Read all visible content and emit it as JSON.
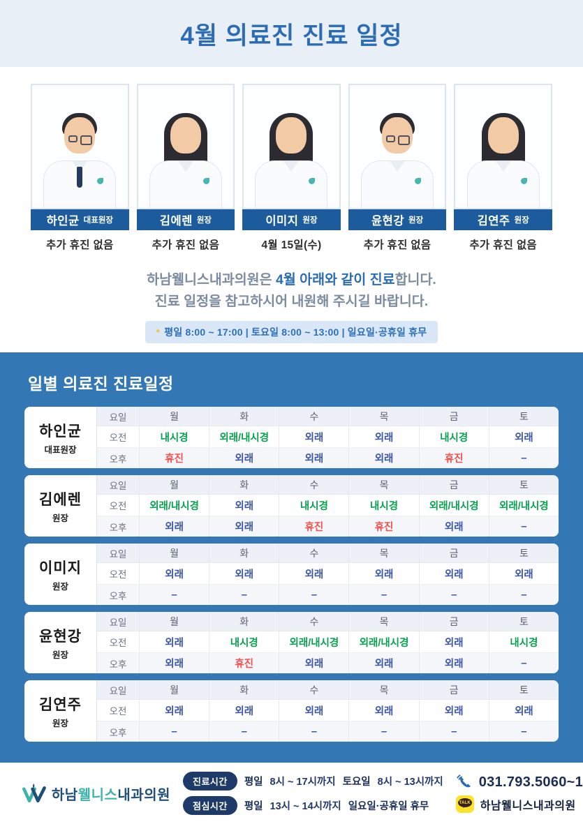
{
  "poster": {
    "title": "4월 의료진 진료 일정"
  },
  "doctors": [
    {
      "name": "하인균",
      "title": "대표원장",
      "note": "추가 휴진 없음"
    },
    {
      "name": "김에렌",
      "title": "원장",
      "note": "추가 휴진 없음"
    },
    {
      "name": "이미지",
      "title": "원장",
      "note": "4월 15일(수)"
    },
    {
      "name": "윤현강",
      "title": "원장",
      "note": "추가 휴진 없음"
    },
    {
      "name": "김연주",
      "title": "원장",
      "note": "추가 휴진 없음"
    }
  ],
  "notice": {
    "line1_prefix": "하남웰니스내과의원은 ",
    "line1_highlight": "4월 아래와 같이 진료",
    "line1_suffix": "합니다.",
    "line2": "진료 일정을 참고하시어 내원해 주시길 바랍니다.",
    "hours_star": "*",
    "hours_text": "평일 8:00 ~ 17:00  |  토요일 8:00 ~ 13:00  |  일요일·공휴일 휴무"
  },
  "schedule": {
    "heading": "일별 의료진 진료일정",
    "row_labels": {
      "day": "요일",
      "am": "오전",
      "pm": "오후"
    },
    "days": [
      "월",
      "화",
      "수",
      "목",
      "금",
      "토"
    ],
    "tables": [
      {
        "doctor": "하인균",
        "title": "대표원장",
        "am": [
          "내시경",
          "외래/내시경",
          "외래",
          "외래",
          "내시경",
          "외래"
        ],
        "pm": [
          "휴진",
          "외래",
          "외래",
          "외래",
          "휴진",
          "–"
        ]
      },
      {
        "doctor": "김에렌",
        "title": "원장",
        "am": [
          "외래/내시경",
          "외래",
          "내시경",
          "내시경",
          "외래/내시경",
          "외래/내시경"
        ],
        "pm": [
          "외래",
          "외래",
          "휴진",
          "휴진",
          "외래",
          "–"
        ]
      },
      {
        "doctor": "이미지",
        "title": "원장",
        "am": [
          "외래",
          "외래",
          "외래",
          "외래",
          "외래",
          "외래"
        ],
        "pm": [
          "–",
          "–",
          "–",
          "–",
          "–",
          "–"
        ]
      },
      {
        "doctor": "윤현강",
        "title": "원장",
        "am": [
          "외래",
          "내시경",
          "외래/내시경",
          "외래/내시경",
          "외래",
          "내시경"
        ],
        "pm": [
          "외래",
          "휴진",
          "외래",
          "외래",
          "외래",
          "–"
        ]
      },
      {
        "doctor": "김연주",
        "title": "원장",
        "am": [
          "외래",
          "외래",
          "외래",
          "외래",
          "외래",
          "외래"
        ],
        "pm": [
          "–",
          "–",
          "–",
          "–",
          "–",
          "–"
        ]
      }
    ]
  },
  "footer": {
    "clinic_name_part1": "하남",
    "clinic_name_part2": "웰니스",
    "clinic_name_part3": "내과의원",
    "hours_row1": {
      "pill": "진료시간",
      "b1": "평일",
      "t1": "8시 ~ 17시까지",
      "b2": "토요일",
      "t2": "8시 ~ 13시까지"
    },
    "hours_row2": {
      "pill": "점심시간",
      "b1": "평일",
      "t1": "13시 ~ 14시까지",
      "b2": "일요일·공휴일 휴무",
      "t2": ""
    },
    "phone": "031.793.5060~1",
    "kakao_icon_text": "TALK",
    "kakao_label": "하남웰니스내과의원"
  },
  "colors": {
    "title_blue": "#2b6cb4",
    "navy": "#1d5c9c",
    "section_blue": "#3377b5",
    "clinic_blue": "#3a55a5",
    "endoscopy_green": "#07a14e",
    "closed_red": "#ef524d"
  }
}
